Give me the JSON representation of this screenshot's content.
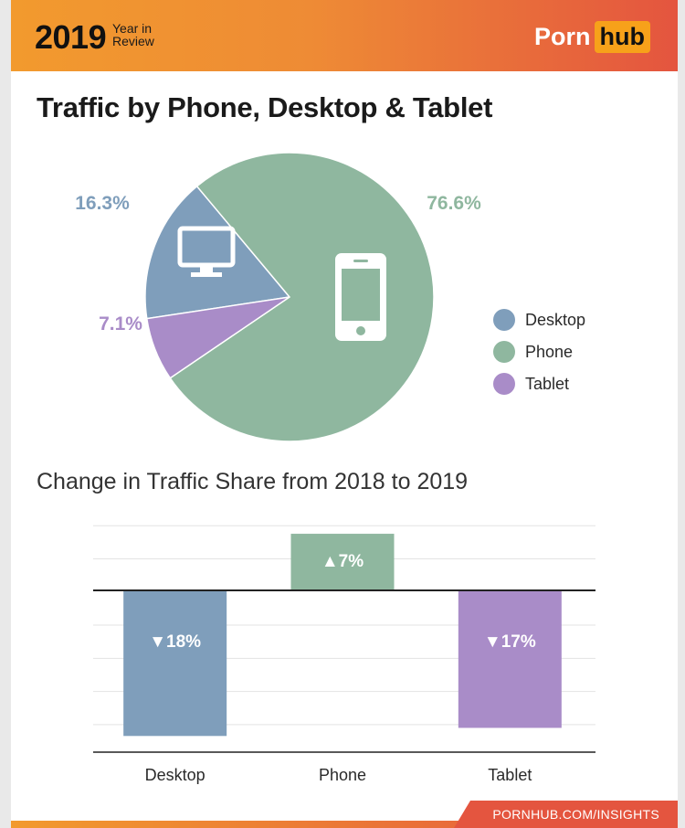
{
  "header": {
    "year": "2019",
    "year_sub_1": "Year in",
    "year_sub_2": "Review",
    "logo_part1": "Porn",
    "logo_part2": "hub"
  },
  "title": "Traffic by Phone, Desktop & Tablet",
  "subtitle": "Change in Traffic Share from 2018 to 2019",
  "footer": "PORNHUB.COM/INSIGHTS",
  "colors": {
    "desktop": "#7f9ebb",
    "phone": "#8fb79f",
    "tablet": "#a98cc8",
    "header_start": "#f29a2e",
    "header_end": "#e4553f",
    "logo_accent": "#f7a11a"
  },
  "chart_data": [
    {
      "type": "pie",
      "title": "Traffic by Phone, Desktop & Tablet",
      "categories": [
        "Desktop",
        "Phone",
        "Tablet"
      ],
      "values": [
        16.3,
        76.6,
        7.1
      ],
      "labels": [
        "16.3%",
        "76.6%",
        "7.1%"
      ],
      "icons": [
        "desktop-icon",
        "phone-icon",
        ""
      ],
      "legend": [
        "Desktop",
        "Phone",
        "Tablet"
      ],
      "legend_position": "right"
    },
    {
      "type": "bar",
      "title": "Change in Traffic Share from 2018 to 2019",
      "categories": [
        "Desktop",
        "Phone",
        "Tablet"
      ],
      "values": [
        -18,
        7,
        -17
      ],
      "labels": [
        "▼18%",
        "▲7%",
        "▼17%"
      ],
      "ylim": [
        -20,
        10
      ],
      "grid": true
    }
  ]
}
